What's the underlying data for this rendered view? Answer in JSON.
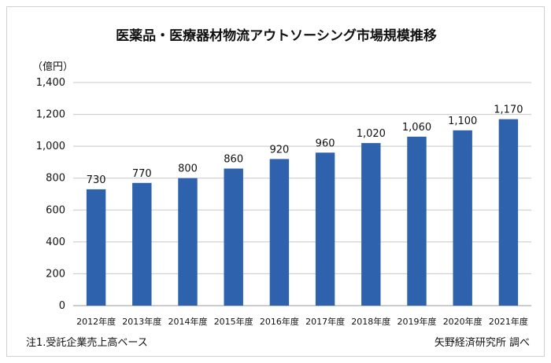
{
  "chart_data": {
    "type": "bar",
    "title": "医薬品・医療器材物流アウトソーシング市場規模推移",
    "unit": "（億円）",
    "categories": [
      "2012年度",
      "2013年度",
      "2014年度",
      "2015年度",
      "2016年度",
      "2017年度",
      "2018年度",
      "2019年度",
      "2020年度",
      "2021年度"
    ],
    "values": [
      730,
      770,
      800,
      860,
      920,
      960,
      1020,
      1060,
      1100,
      1170
    ],
    "value_labels": [
      "730",
      "770",
      "800",
      "860",
      "920",
      "960",
      "1,020",
      "1,060",
      "1,100",
      "1,170"
    ],
    "yticks": [
      0,
      200,
      400,
      600,
      800,
      1000,
      1200,
      1400
    ],
    "ytick_labels": [
      "0",
      "200",
      "400",
      "600",
      "800",
      "1,000",
      "1,200",
      "1,400"
    ],
    "ylim": [
      0,
      1400
    ],
    "grid": true,
    "legend": "none",
    "bar_color": "#2f62ad"
  },
  "notes": {
    "left": "注1.受託企業売上高ベース",
    "right": "矢野経済研究所 調べ"
  }
}
